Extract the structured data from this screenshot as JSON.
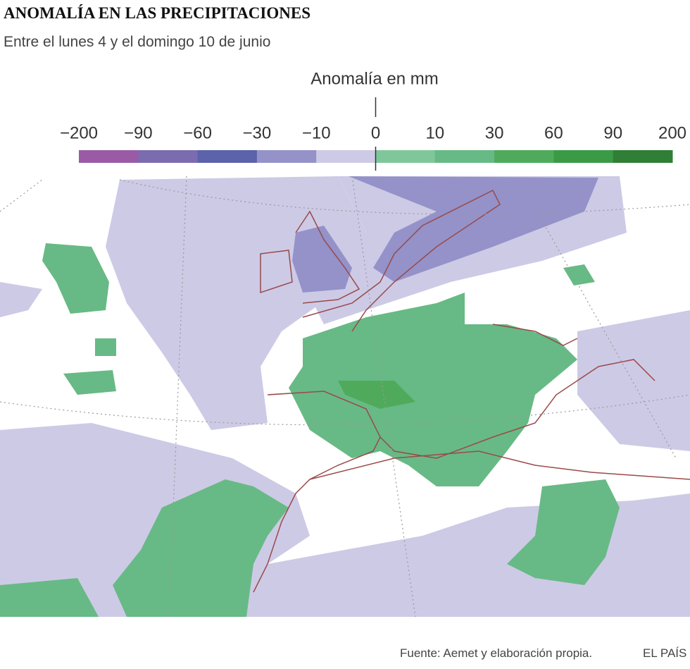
{
  "header": {
    "title": "ANOMALÍA EN LAS PRECIPITACIONES",
    "subtitle": "Entre el lunes 4 y el domingo 10 de junio"
  },
  "legend": {
    "title": "Anomalía en mm",
    "ticks": [
      {
        "value": -200,
        "label": "−200"
      },
      {
        "value": -90,
        "label": "−90"
      },
      {
        "value": -60,
        "label": "−60"
      },
      {
        "value": -30,
        "label": "−30"
      },
      {
        "value": -10,
        "label": "−10"
      },
      0,
      10,
      30,
      60,
      90,
      200
    ],
    "colors": [
      "#9b5aa6",
      "#7b6cb0",
      "#5c63aa",
      "#9492c9",
      "#cdcae6",
      "#7fc79b",
      "#67ba85",
      "#4fab5b",
      "#3b9a46",
      "#2f7f36"
    ]
  },
  "footer": {
    "source": "Fuente: Aemet y elaboración propia.",
    "brand": "EL PAÍS"
  }
}
